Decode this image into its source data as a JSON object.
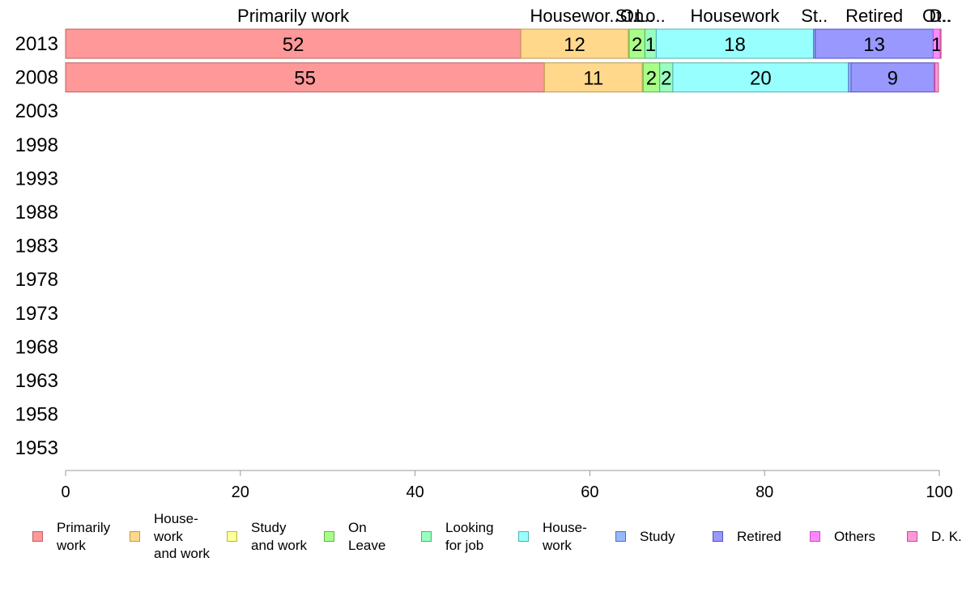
{
  "chart_data": {
    "type": "bar",
    "orientation": "horizontal",
    "stacked": true,
    "categories": [
      "2013",
      "2008",
      "2003",
      "1998",
      "1993",
      "1988",
      "1983",
      "1978",
      "1973",
      "1968",
      "1963",
      "1958",
      "1953"
    ],
    "xlim": [
      0,
      100
    ],
    "xticks": [
      "0",
      "20",
      "40",
      "60",
      "80",
      "100"
    ],
    "grid": false,
    "legend_position": "bottom",
    "series": [
      {
        "name": "Primarily\nwork",
        "color": "#FF9898",
        "border": "#c06060",
        "values": [
          52.1,
          54.8,
          null,
          null,
          null,
          null,
          null,
          null,
          null,
          null,
          null,
          null,
          null
        ]
      },
      {
        "name": "House-\nwork\nand work",
        "color": "#FFD88C",
        "border": "#c09850",
        "values": [
          12.3,
          11.2,
          null,
          null,
          null,
          null,
          null,
          null,
          null,
          null,
          null,
          null,
          null
        ]
      },
      {
        "name": "Study\nand work",
        "color": "#FFFF98",
        "border": "#b8b850",
        "values": [
          0.1,
          0.1,
          null,
          null,
          null,
          null,
          null,
          null,
          null,
          null,
          null,
          null,
          null
        ]
      },
      {
        "name": "On\nLeave",
        "color": "#A8FF88",
        "border": "#60b050",
        "values": [
          1.8,
          1.9,
          null,
          null,
          null,
          null,
          null,
          null,
          null,
          null,
          null,
          null,
          null
        ]
      },
      {
        "name": "Looking\nfor job",
        "color": "#98FFC0",
        "border": "#50b070",
        "values": [
          1.3,
          1.5,
          null,
          null,
          null,
          null,
          null,
          null,
          null,
          null,
          null,
          null,
          null
        ]
      },
      {
        "name": "House-\nwork",
        "color": "#98FFFF",
        "border": "#50b0b0",
        "values": [
          18.0,
          20.1,
          null,
          null,
          null,
          null,
          null,
          null,
          null,
          null,
          null,
          null,
          null
        ]
      },
      {
        "name": "Study",
        "color": "#98B8FF",
        "border": "#5070c0",
        "values": [
          0.2,
          0.3,
          null,
          null,
          null,
          null,
          null,
          null,
          null,
          null,
          null,
          null,
          null
        ]
      },
      {
        "name": "Retired",
        "color": "#9898FF",
        "border": "#5050c0",
        "values": [
          13.5,
          9.5,
          null,
          null,
          null,
          null,
          null,
          null,
          null,
          null,
          null,
          null,
          null
        ]
      },
      {
        "name": "Others",
        "color": "#FF88FF",
        "border": "#c050c0",
        "values": [
          0.8,
          0.1,
          null,
          null,
          null,
          null,
          null,
          null,
          null,
          null,
          null,
          null,
          null
        ]
      },
      {
        "name": "D. K.",
        "color": "#FF98D8",
        "border": "#c05090",
        "values": [
          0.1,
          0.4,
          null,
          null,
          null,
          null,
          null,
          null,
          null,
          null,
          null,
          null,
          null
        ]
      }
    ],
    "data_labels": [
      [
        "52",
        "12",
        "",
        "2",
        "1",
        "18",
        "",
        "13",
        "1",
        ""
      ],
      [
        "55",
        "11",
        "",
        "2",
        "2",
        "20",
        "",
        "9",
        "",
        ""
      ]
    ],
    "top_labels": [
      "Primarily work",
      "Housewor..",
      "St..",
      "On..",
      "Lo..",
      "Housework",
      "St..",
      "Retired",
      "Ot..",
      "D.."
    ]
  }
}
